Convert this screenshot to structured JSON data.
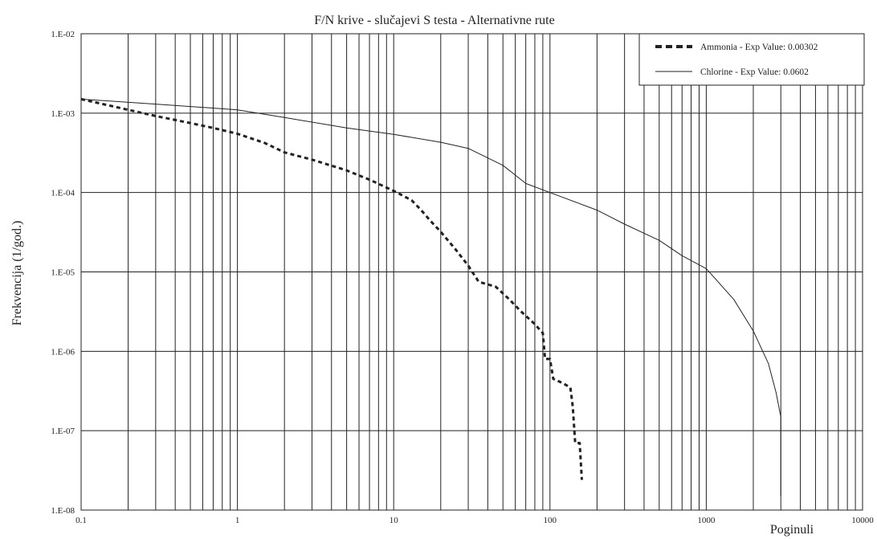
{
  "chart_data": {
    "type": "line",
    "title": "F/N krive - slučajevi S testa - Alternativne rute",
    "xlabel": "Poginuli",
    "ylabel": "Frekvencija (1/god.)",
    "x_scale": "log",
    "y_scale": "log",
    "xlim": [
      0.1,
      10000
    ],
    "ylim": [
      1e-08,
      0.01
    ],
    "x_tick_labels": [
      "0.1",
      "1",
      "10",
      "100",
      "1000",
      "10000"
    ],
    "y_tick_labels": [
      "1.E-02",
      "1.E-03",
      "1.E-04",
      "1.E-05",
      "1.E-06",
      "1.E-07",
      "1.E-08"
    ],
    "grid": true,
    "legend_position": "top-right",
    "series": [
      {
        "name": "Ammonia - Exp Value: 0.00302",
        "style": "dashed",
        "color": "#222222",
        "points": [
          [
            0.1,
            0.0015
          ],
          [
            0.2,
            0.0011
          ],
          [
            0.3,
            0.00092
          ],
          [
            0.5,
            0.00075
          ],
          [
            0.7,
            0.00065
          ],
          [
            1.0,
            0.00055
          ],
          [
            1.5,
            0.00042
          ],
          [
            2.0,
            0.00032
          ],
          [
            3.0,
            0.00026
          ],
          [
            5.0,
            0.00019
          ],
          [
            7.0,
            0.000145
          ],
          [
            10.0,
            0.000105
          ],
          [
            13.0,
            8e-05
          ],
          [
            15.0,
            6e-05
          ],
          [
            17.0,
            4.5e-05
          ],
          [
            20.0,
            3.2e-05
          ],
          [
            25.0,
            1.9e-05
          ],
          [
            30.0,
            1.2e-05
          ],
          [
            35.0,
            7.5e-06
          ],
          [
            45.0,
            6.5e-06
          ],
          [
            55.0,
            4.5e-06
          ],
          [
            65.0,
            3.2e-06
          ],
          [
            80.0,
            2.2e-06
          ],
          [
            90.0,
            1.7e-06
          ],
          [
            93.0,
            8e-07
          ],
          [
            100.0,
            8e-07
          ],
          [
            105.0,
            4.5e-07
          ],
          [
            120.0,
            4e-07
          ],
          [
            135.0,
            3.5e-07
          ],
          [
            140.0,
            2e-07
          ],
          [
            145.0,
            7e-08
          ],
          [
            155.0,
            7e-08
          ],
          [
            160.0,
            2.4e-08
          ]
        ]
      },
      {
        "name": "Chlorine - Exp Value: 0.0602",
        "style": "solid",
        "color": "#222222",
        "points": [
          [
            0.1,
            0.0015
          ],
          [
            0.3,
            0.0013
          ],
          [
            1.0,
            0.0011
          ],
          [
            2.0,
            0.00088
          ],
          [
            5.0,
            0.00065
          ],
          [
            10.0,
            0.00054
          ],
          [
            20.0,
            0.00043
          ],
          [
            30.0,
            0.00036
          ],
          [
            50.0,
            0.00022
          ],
          [
            70.0,
            0.00013
          ],
          [
            100.0,
            0.0001
          ],
          [
            200.0,
            6e-05
          ],
          [
            300.0,
            4e-05
          ],
          [
            500.0,
            2.5e-05
          ],
          [
            700.0,
            1.6e-05
          ],
          [
            1000.0,
            1.1e-05
          ],
          [
            1500.0,
            4.5e-06
          ],
          [
            2000.0,
            1.8e-06
          ],
          [
            2500.0,
            7e-07
          ],
          [
            2800.0,
            3e-07
          ],
          [
            3000.0,
            1.5e-07
          ],
          [
            3000.0,
            1.5e-08
          ]
        ]
      }
    ]
  }
}
